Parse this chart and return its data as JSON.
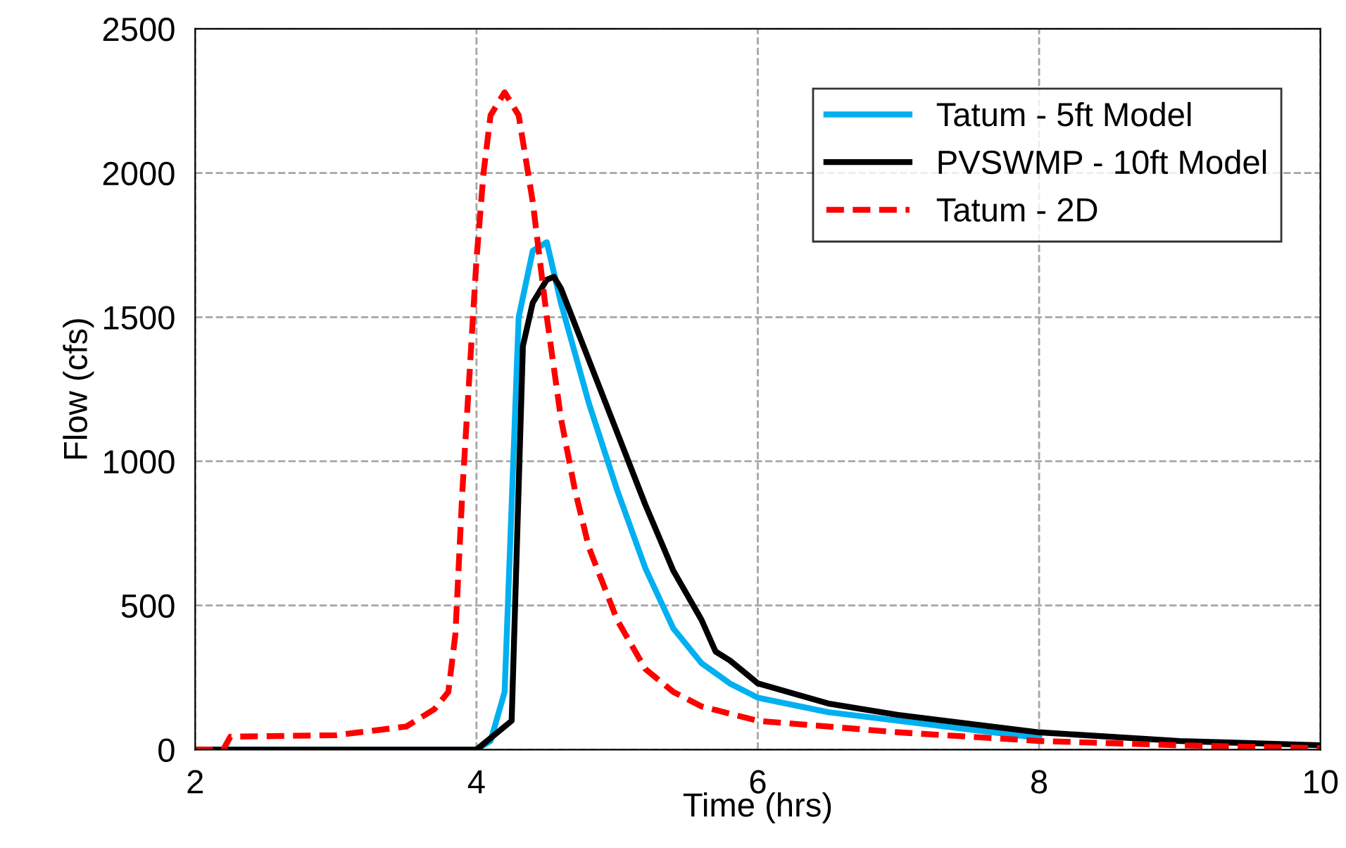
{
  "chart_data": {
    "type": "line",
    "xlabel": "Time (hrs)",
    "ylabel": "Flow (cfs)",
    "xlim": [
      2,
      10
    ],
    "xticks": [
      2,
      4,
      6,
      8,
      10
    ],
    "ylim": [
      0,
      2500
    ],
    "yticks": [
      0,
      500,
      1000,
      1500,
      2000,
      2500
    ],
    "grid": true,
    "legend": "top right",
    "series": [
      {
        "name": "Tatum - 5ft Model",
        "color": "#00b0f0",
        "line_style": "solid",
        "x": [
          2,
          4.0,
          4.1,
          4.2,
          4.3,
          4.4,
          4.5,
          4.6,
          4.8,
          5.0,
          5.2,
          5.4,
          5.6,
          5.8,
          6.0,
          6.5,
          7.0,
          8.0
        ],
        "values": [
          0,
          0,
          30,
          200,
          1500,
          1730,
          1760,
          1550,
          1200,
          900,
          630,
          420,
          300,
          230,
          180,
          130,
          100,
          40
        ]
      },
      {
        "name": "PVSWMP - 10ft Model",
        "color": "#000000",
        "line_style": "solid",
        "x": [
          2,
          4.0,
          4.1,
          4.25,
          4.33,
          4.4,
          4.5,
          4.55,
          4.6,
          4.8,
          5.0,
          5.2,
          5.4,
          5.6,
          5.7,
          5.8,
          5.9,
          6.0,
          6.5,
          7.0,
          8.0,
          9.0,
          10.0
        ],
        "values": [
          0,
          0,
          40,
          100,
          1400,
          1550,
          1630,
          1640,
          1600,
          1350,
          1100,
          850,
          620,
          450,
          340,
          310,
          270,
          230,
          160,
          120,
          60,
          30,
          15
        ]
      },
      {
        "name": "Tatum - 2D",
        "color": "#ff0000",
        "line_style": "dashed",
        "x": [
          2.0,
          2.2,
          2.25,
          3.0,
          3.5,
          3.7,
          3.8,
          3.85,
          3.9,
          3.95,
          4.0,
          4.05,
          4.1,
          4.2,
          4.3,
          4.4,
          4.5,
          4.6,
          4.7,
          4.8,
          5.0,
          5.2,
          5.4,
          5.6,
          6.0,
          7.0,
          8.0,
          9.0,
          10.0
        ],
        "values": [
          0,
          0,
          45,
          50,
          80,
          140,
          200,
          400,
          900,
          1300,
          1700,
          2000,
          2200,
          2280,
          2200,
          1900,
          1500,
          1150,
          900,
          700,
          450,
          280,
          200,
          150,
          100,
          60,
          30,
          15,
          5
        ]
      }
    ]
  }
}
